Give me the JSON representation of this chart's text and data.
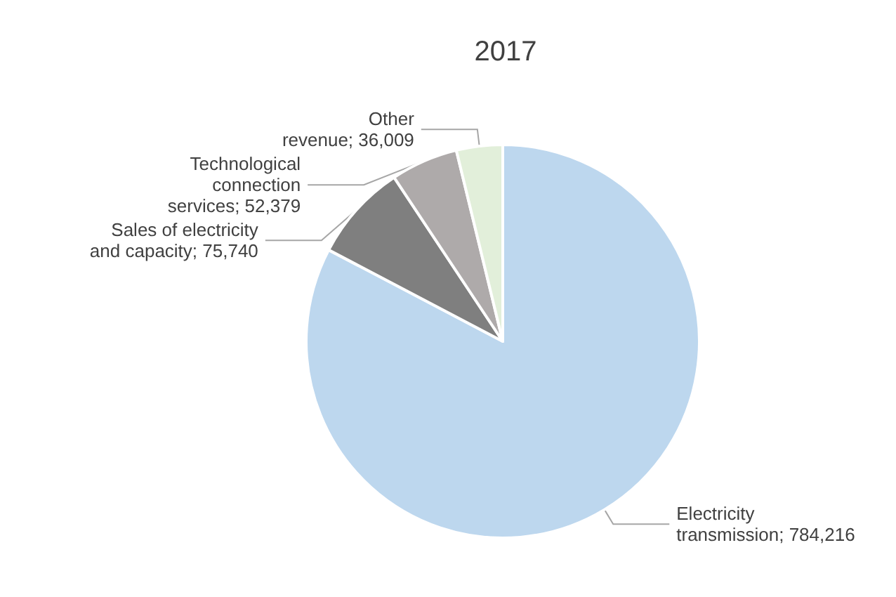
{
  "chart_data": {
    "type": "pie",
    "title": "2017",
    "categories": [
      "Electricity transmission",
      "Sales of electricity and capacity",
      "Technological connection services",
      "Other revenue"
    ],
    "values": [
      784216,
      75740,
      52379,
      36009
    ],
    "value_labels": [
      "784,216",
      "75,740",
      "52,379",
      "36,009"
    ],
    "colors": [
      "#bdd7ee",
      "#7f7f7f",
      "#aeaaaa",
      "#e2efda"
    ],
    "legend": false
  }
}
